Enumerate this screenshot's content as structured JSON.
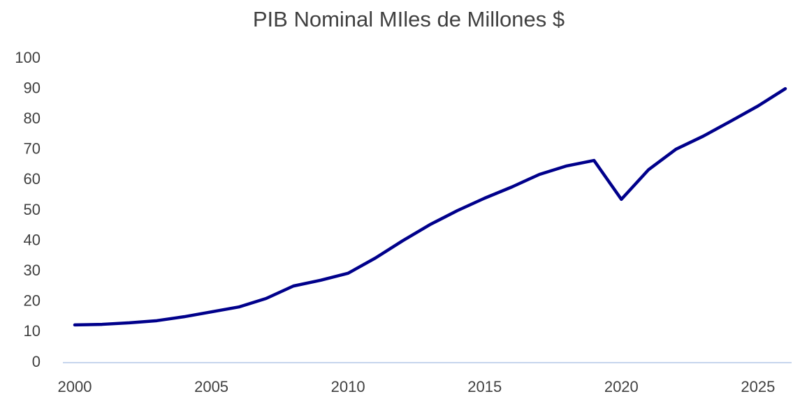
{
  "chart_data": {
    "type": "line",
    "title": "PIB Nominal MIles de Millones $",
    "x": [
      2000,
      2001,
      2002,
      2003,
      2004,
      2005,
      2006,
      2007,
      2008,
      2009,
      2010,
      2011,
      2012,
      2013,
      2014,
      2015,
      2016,
      2017,
      2018,
      2019,
      2020,
      2021,
      2022,
      2023,
      2024,
      2025,
      2026
    ],
    "series": [
      {
        "name": "PIB",
        "color": "#00008b",
        "values": [
          12.4,
          12.6,
          13.1,
          13.8,
          15.1,
          16.7,
          18.3,
          21.1,
          25.2,
          27.1,
          29.4,
          34.4,
          40.1,
          45.4,
          50.0,
          54.1,
          57.8,
          61.9,
          64.7,
          66.5,
          53.7,
          63.5,
          70.2,
          74.5,
          79.4,
          84.4,
          90.1
        ]
      }
    ],
    "xlim": [
      2000,
      2026
    ],
    "xticks": [
      2000,
      2005,
      2010,
      2015,
      2020,
      2025
    ],
    "ylim": [
      0,
      100
    ],
    "yticks": [
      0,
      10,
      20,
      30,
      40,
      50,
      60,
      70,
      80,
      90,
      100
    ],
    "grid": false
  }
}
